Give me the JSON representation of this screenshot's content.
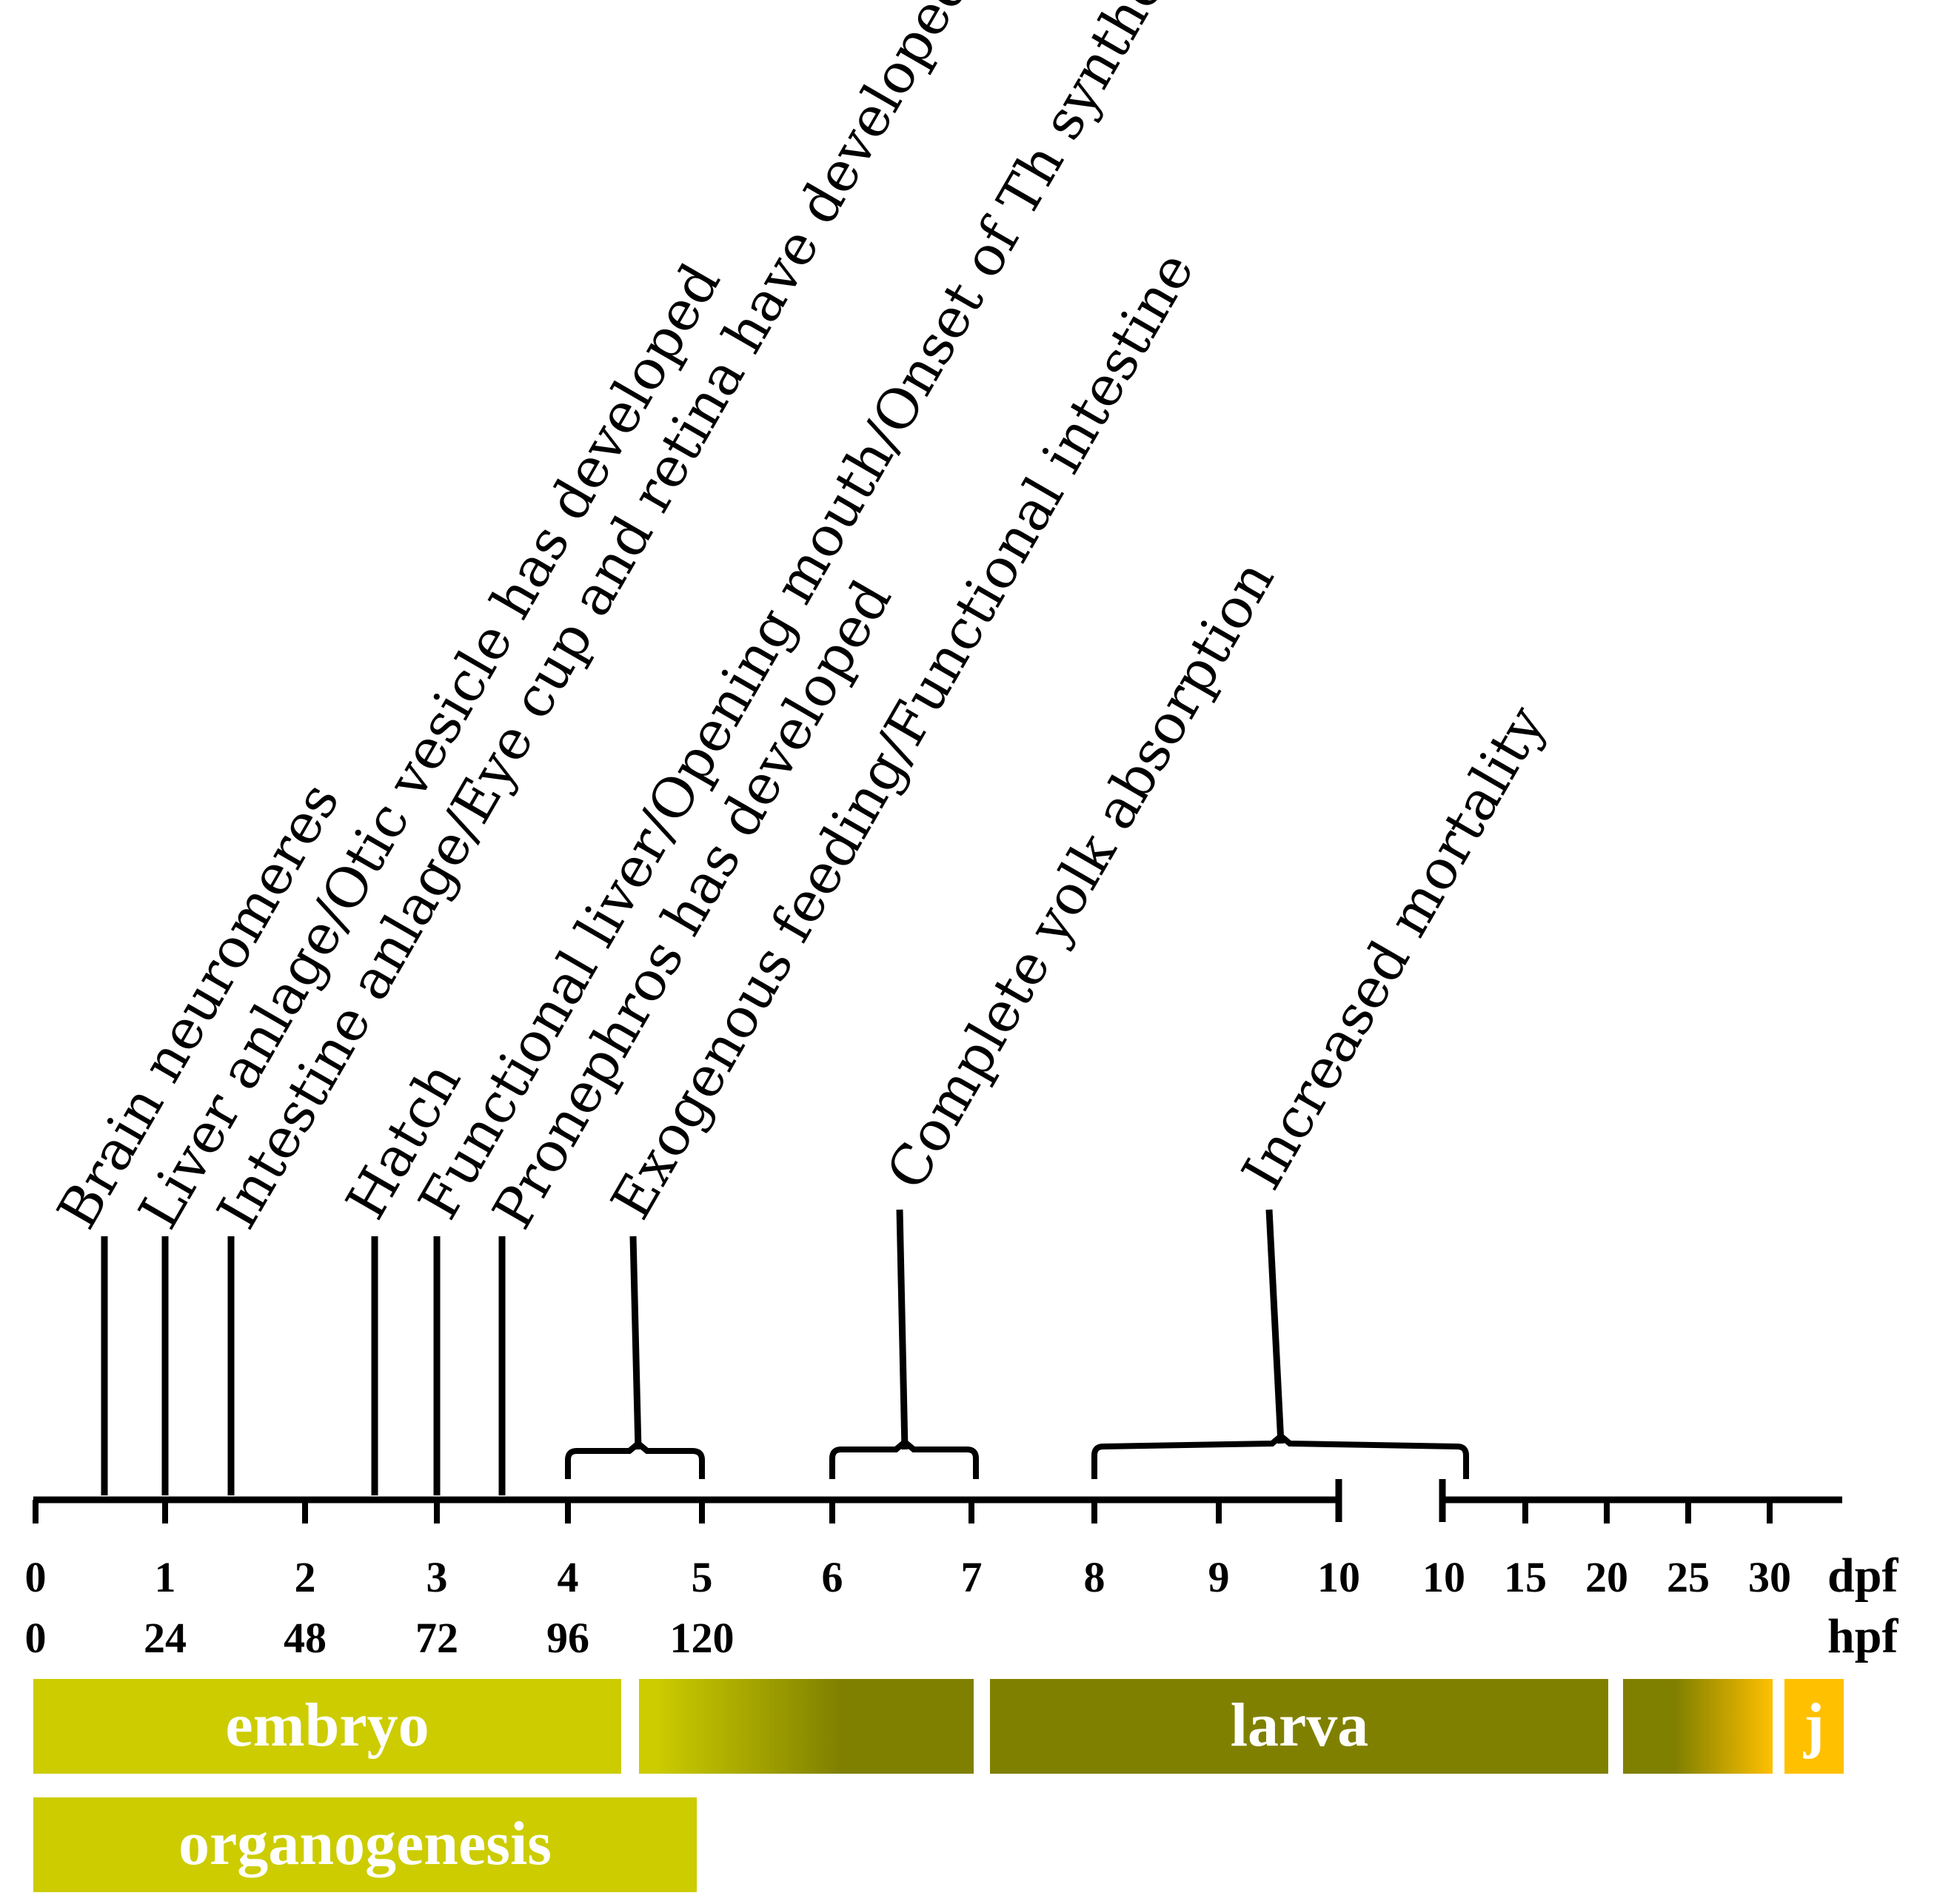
{
  "events": [
    {
      "label": "Brain neuromeres"
    },
    {
      "label": "Liver anlage/Otic vesicle has developed"
    },
    {
      "label": "Intestine anlage/Eye cup and retina have developed"
    },
    {
      "label": "Hatch"
    },
    {
      "label": "Functional liver/Opening mouth/Onset of Th synthesis"
    },
    {
      "label": "Pronephros has developed"
    },
    {
      "label": "Exogenous feeding/Functional intestine"
    },
    {
      "label": "Complete yolk absorption"
    },
    {
      "label": "Increased mortality"
    }
  ],
  "axis": {
    "dpf_ticks": [
      "0",
      "1",
      "2",
      "3",
      "4",
      "5",
      "6",
      "7",
      "8",
      "9",
      "10",
      "10",
      "15",
      "20",
      "25",
      "30"
    ],
    "hpf_ticks": [
      "0",
      "24",
      "48",
      "72",
      "96",
      "120"
    ],
    "dpf_unit": "dpf",
    "hpf_unit": "hpf"
  },
  "stages": [
    {
      "label": "embryo",
      "color": "#cccc00"
    },
    {
      "label": "",
      "color_start": "#cccc00",
      "color_end": "#808000"
    },
    {
      "label": "larva",
      "color": "#808000"
    },
    {
      "label": "",
      "color_start": "#808000",
      "color_end": "#ffc000"
    },
    {
      "label": "j",
      "color": "#ffc000"
    },
    {
      "label": "organogenesis",
      "color": "#cccc00"
    }
  ]
}
